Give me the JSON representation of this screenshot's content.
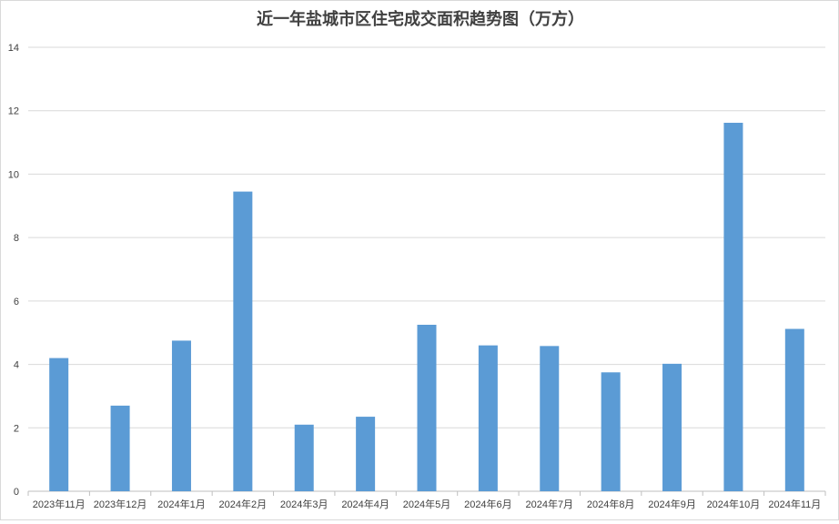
{
  "chart_data": {
    "type": "bar",
    "title": "近一年盐城市区住宅成交面积趋势图（万方）",
    "xlabel": "",
    "ylabel": "",
    "categories": [
      "2023年11月",
      "2023年12月",
      "2024年1月",
      "2024年2月",
      "2024年3月",
      "2024年4月",
      "2024年5月",
      "2024年6月",
      "2024年7月",
      "2024年8月",
      "2024年9月",
      "2024年10月",
      "2024年11月"
    ],
    "values": [
      4.2,
      2.7,
      4.75,
      9.45,
      2.1,
      2.35,
      5.25,
      4.6,
      4.58,
      3.75,
      4.02,
      11.62,
      5.12
    ],
    "ylim": [
      0,
      14
    ],
    "yticks": [
      0,
      2,
      4,
      6,
      8,
      10,
      12,
      14
    ],
    "grid": true,
    "bar_color": "#5B9BD5",
    "grid_color": "#d9d9d9"
  }
}
